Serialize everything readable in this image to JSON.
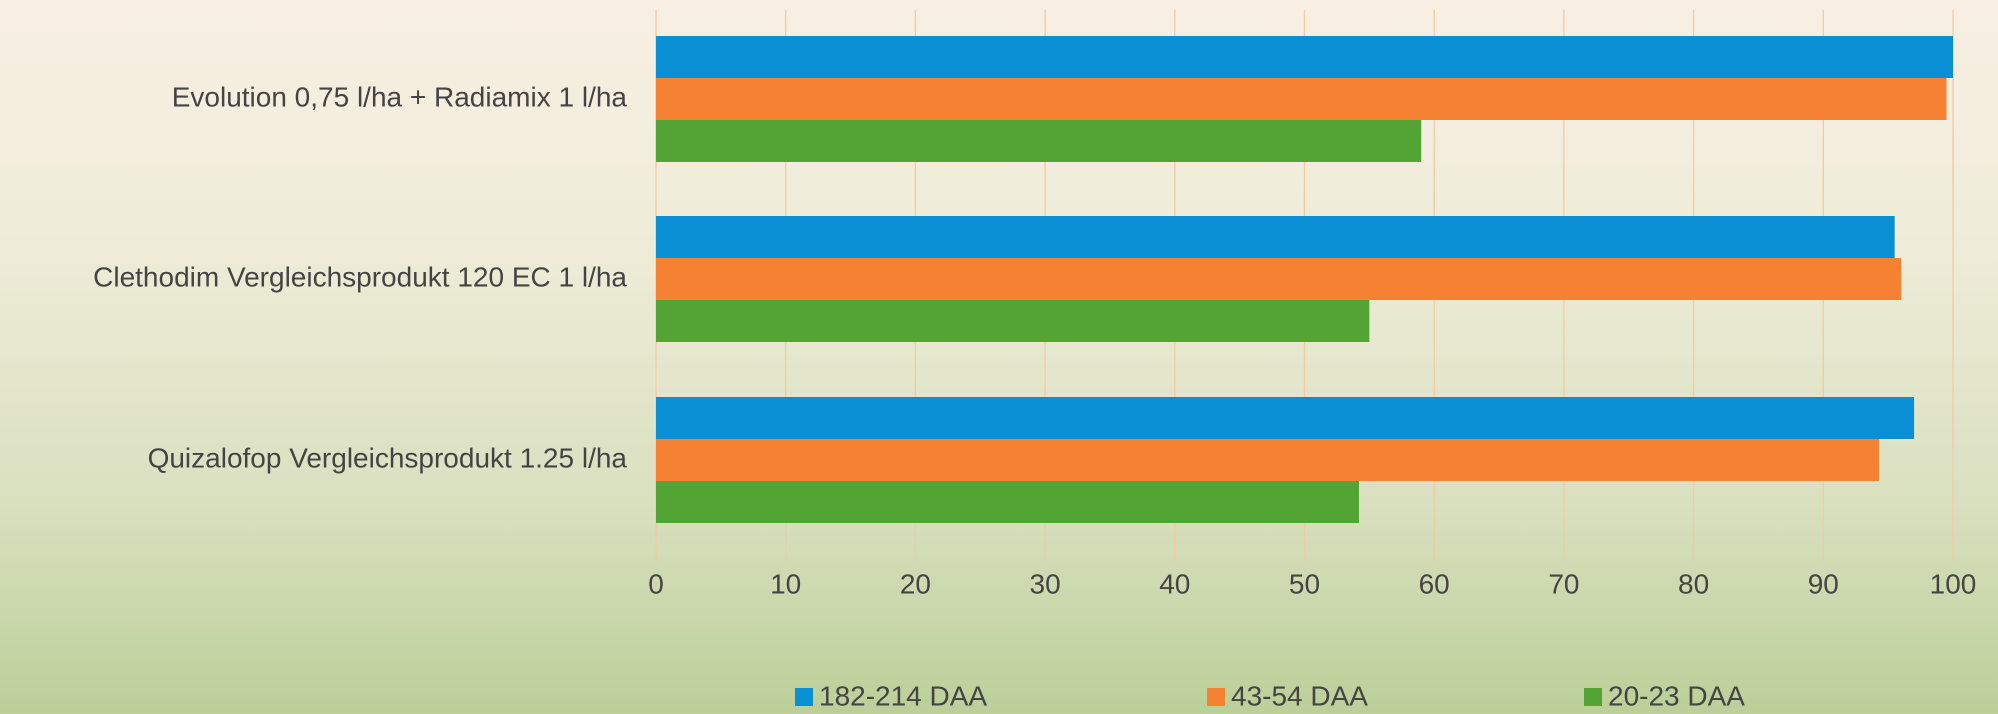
{
  "chart_data": {
    "type": "hbar",
    "categories": [
      "Evolution 0,75 l/ha + Radiamix 1 l/ha",
      "Clethodim Vergleichsprodukt 120 EC 1 l/ha",
      "Quizalofop Vergleichsprodukt 1.25 l/ha"
    ],
    "series": [
      {
        "name": "182-214 DAA",
        "color": "#0a8fd4",
        "values": [
          100,
          95.5,
          97
        ]
      },
      {
        "name": "43-54 DAA",
        "color": "#f58232",
        "values": [
          99.5,
          96,
          94.3
        ]
      },
      {
        "name": "20-23 DAA",
        "color": "#52a535",
        "values": [
          59,
          55,
          54.2
        ]
      }
    ],
    "xlim": [
      0,
      100
    ],
    "xticks": [
      0,
      10,
      20,
      30,
      40,
      50,
      60,
      70,
      80,
      90,
      100
    ],
    "grid": true,
    "legend": "bottom"
  }
}
